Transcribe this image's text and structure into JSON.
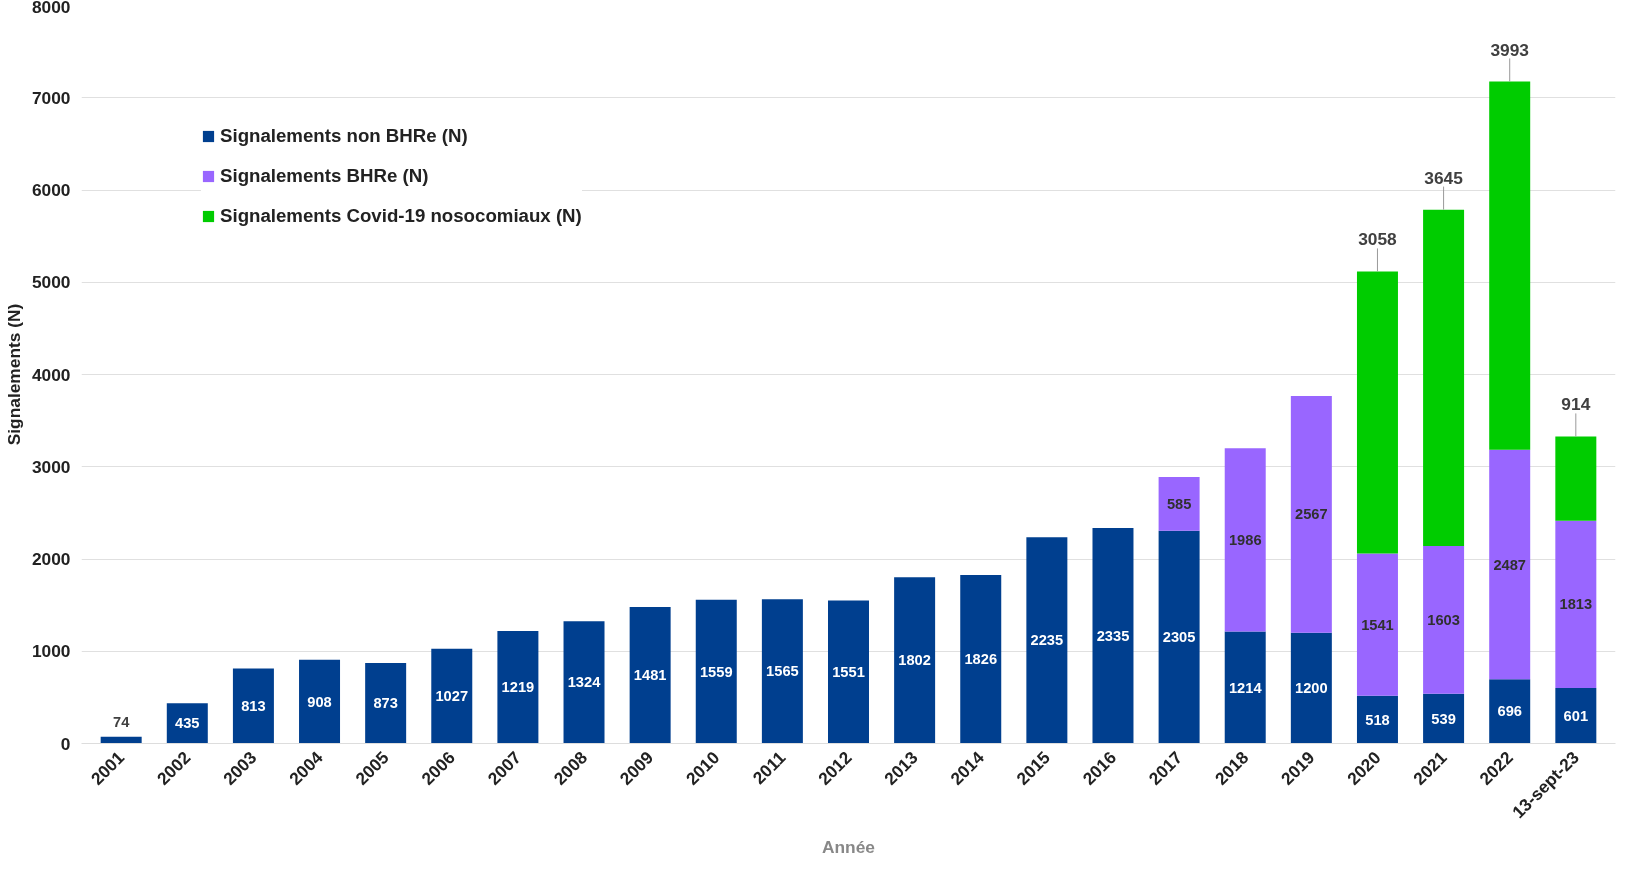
{
  "chart_data": {
    "type": "bar",
    "stacked": true,
    "xlabel": "Année",
    "ylabel": "Signalements (N)",
    "categories": [
      "2001",
      "2002",
      "2003",
      "2004",
      "2005",
      "2006",
      "2007",
      "2008",
      "2009",
      "2010",
      "2011",
      "2012",
      "2013",
      "2014",
      "2015",
      "2016",
      "2017",
      "2018",
      "2019",
      "2020",
      "2021",
      "2022",
      "13-sept-23"
    ],
    "series": [
      {
        "name": "Signalements non BHRe (N)",
        "color": "#003f8f",
        "values": [
          74,
          435,
          813,
          908,
          873,
          1027,
          1219,
          1324,
          1481,
          1559,
          1565,
          1551,
          1802,
          1826,
          2235,
          2335,
          2305,
          1214,
          1200,
          518,
          539,
          696,
          601
        ]
      },
      {
        "name": "Signalements BHRe (N)",
        "color": "#9966ff",
        "values": [
          null,
          null,
          null,
          null,
          null,
          null,
          null,
          null,
          null,
          null,
          null,
          null,
          null,
          null,
          null,
          null,
          585,
          1986,
          2567,
          1541,
          1603,
          2487,
          1813
        ]
      },
      {
        "name": "Signalements Covid-19 nosocomiaux (N)",
        "color": "#00cc00",
        "values": [
          null,
          null,
          null,
          null,
          null,
          null,
          null,
          null,
          null,
          null,
          null,
          null,
          null,
          null,
          null,
          null,
          null,
          null,
          null,
          3058,
          3645,
          3993,
          914
        ]
      }
    ],
    "ylim": [
      0,
      8000
    ],
    "yticks": [
      0,
      1000,
      2000,
      3000,
      4000,
      5000,
      6000,
      7000,
      8000
    ],
    "grid": "y",
    "legend": "top left",
    "data_labels": true
  }
}
